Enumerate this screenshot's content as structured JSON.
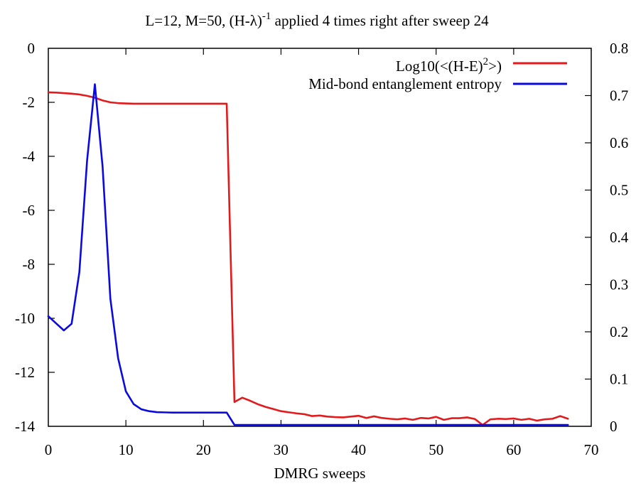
{
  "chart_data": {
    "type": "line",
    "title": {
      "prefix": "L=12, M=50, (H-λ)",
      "superscript": "-1",
      "suffix": " applied 4 times right after sweep 24"
    },
    "xlabel": "DMRG sweeps",
    "xlim": [
      0,
      70
    ],
    "y_left_lim": [
      -14,
      0
    ],
    "y_right_lim": [
      0,
      0.8
    ],
    "x_ticks": [
      "0",
      "10",
      "20",
      "30",
      "40",
      "50",
      "60",
      "70"
    ],
    "y_left_ticks": [
      "0",
      "-2",
      "-4",
      "-6",
      "-8",
      "-10",
      "-12",
      "-14"
    ],
    "y_right_ticks": [
      "0.8",
      "0.7",
      "0.6",
      "0.5",
      "0.4",
      "0.3",
      "0.2",
      "0.1",
      "0"
    ],
    "legend_position": "top-right",
    "series": [
      {
        "name": "Log10(<(H-E)^2>)",
        "legend": {
          "prefix": "Log10(<(H-E)",
          "superscript": "2",
          "suffix": ">)"
        },
        "color": "#e31a1c",
        "axis": "left",
        "x": [
          0,
          1,
          2,
          3,
          4,
          5,
          6,
          7,
          8,
          9,
          10,
          11,
          12,
          13,
          14,
          15,
          16,
          17,
          18,
          19,
          20,
          21,
          22,
          23,
          24,
          25,
          26,
          27,
          28,
          29,
          30,
          31,
          32,
          33,
          34,
          35,
          36,
          37,
          38,
          39,
          40,
          41,
          42,
          43,
          44,
          45,
          46,
          47,
          48,
          49,
          50,
          51,
          52,
          53,
          54,
          55,
          56,
          57,
          58,
          59,
          60,
          61,
          62,
          63,
          64,
          65,
          66,
          67
        ],
        "y": [
          -1.63,
          -1.64,
          -1.66,
          -1.68,
          -1.71,
          -1.76,
          -1.83,
          -1.93,
          -2.0,
          -2.03,
          -2.04,
          -2.05,
          -2.05,
          -2.05,
          -2.05,
          -2.05,
          -2.05,
          -2.05,
          -2.05,
          -2.05,
          -2.05,
          -2.05,
          -2.05,
          -2.05,
          -13.1,
          -12.94,
          -13.05,
          -13.18,
          -13.28,
          -13.36,
          -13.44,
          -13.48,
          -13.52,
          -13.55,
          -13.62,
          -13.6,
          -13.64,
          -13.66,
          -13.67,
          -13.64,
          -13.61,
          -13.69,
          -13.63,
          -13.69,
          -13.72,
          -13.74,
          -13.71,
          -13.76,
          -13.69,
          -13.71,
          -13.65,
          -13.76,
          -13.7,
          -13.7,
          -13.67,
          -13.73,
          -13.95,
          -13.74,
          -13.72,
          -13.73,
          -13.71,
          -13.76,
          -13.72,
          -13.79,
          -13.74,
          -13.72,
          -13.62,
          -13.72
        ]
      },
      {
        "name": "Mid-bond entanglement entropy",
        "color": "#0a0ae0",
        "axis": "right",
        "x": [
          0,
          1,
          2,
          3,
          4,
          5,
          6,
          7,
          8,
          9,
          10,
          11,
          12,
          13,
          14,
          15,
          16,
          17,
          18,
          19,
          20,
          21,
          22,
          23,
          24,
          25,
          26,
          27,
          28,
          29,
          30,
          31,
          32,
          33,
          34,
          35,
          36,
          37,
          38,
          39,
          40,
          41,
          42,
          43,
          44,
          45,
          46,
          47,
          48,
          49,
          50,
          51,
          52,
          53,
          54,
          55,
          56,
          57,
          58,
          59,
          60,
          61,
          62,
          63,
          64,
          65,
          66,
          67
        ],
        "y": [
          0.233,
          0.218,
          0.203,
          0.217,
          0.326,
          0.563,
          0.724,
          0.549,
          0.27,
          0.144,
          0.074,
          0.047,
          0.036,
          0.032,
          0.03,
          0.0295,
          0.029,
          0.029,
          0.029,
          0.029,
          0.029,
          0.029,
          0.029,
          0.029,
          0.003,
          0.003,
          0.003,
          0.003,
          0.003,
          0.003,
          0.003,
          0.003,
          0.003,
          0.003,
          0.003,
          0.003,
          0.003,
          0.003,
          0.003,
          0.003,
          0.003,
          0.003,
          0.003,
          0.003,
          0.003,
          0.003,
          0.003,
          0.003,
          0.003,
          0.003,
          0.003,
          0.003,
          0.003,
          0.003,
          0.003,
          0.003,
          0.003,
          0.003,
          0.003,
          0.003,
          0.003,
          0.003,
          0.003,
          0.003,
          0.003,
          0.003,
          0.003,
          0.003
        ]
      }
    ]
  }
}
